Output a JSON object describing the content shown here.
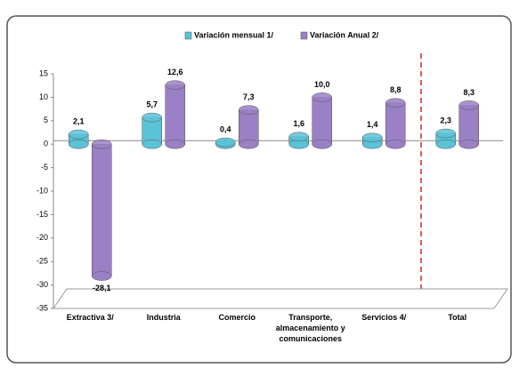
{
  "chart_data": {
    "type": "bar",
    "categories": [
      "Extractiva 3/",
      "Industria",
      "Comercio",
      "Transporte, almacenamiento y comunicaciones",
      "Servicios 4/",
      "Total"
    ],
    "series": [
      {
        "name": "Variación mensual 1/",
        "color": "#5bc3d8",
        "values": [
          2.1,
          5.7,
          0.4,
          1.6,
          1.4,
          2.3
        ],
        "value_labels": [
          "2,1",
          "5,7",
          "0,4",
          "1,6",
          "1,4",
          "2,3"
        ]
      },
      {
        "name": "Variación Anual 2/",
        "color": "#9a80c4",
        "values": [
          -28.1,
          12.6,
          7.3,
          10.0,
          8.8,
          8.3
        ],
        "value_labels": [
          "-28,1",
          "12,6",
          "7,3",
          "10,0",
          "8,8",
          "8,3"
        ]
      }
    ],
    "ylim": [
      -35,
      15
    ],
    "yticks": [
      15,
      10,
      5,
      0,
      -5,
      -10,
      -15,
      -20,
      -25,
      -30,
      -35
    ]
  }
}
